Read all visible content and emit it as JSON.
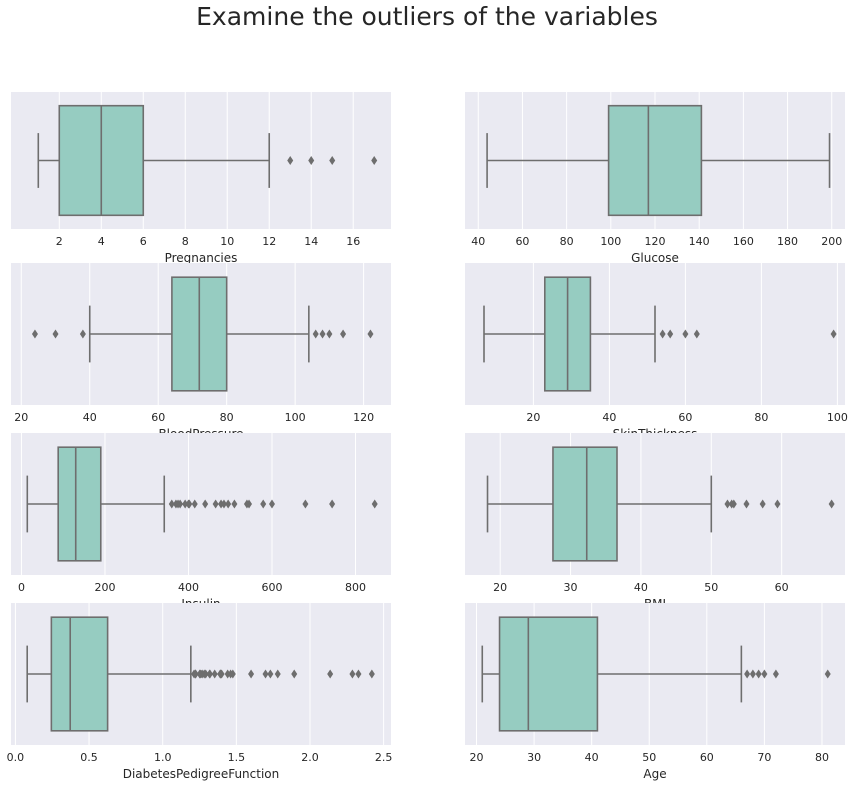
{
  "title": "Examine the outliers of the variables",
  "colors": {
    "panel_bg": "#EAEAF2",
    "grid": "#ffffff",
    "box_fill": "#96CCC1",
    "line": "#6E6E6E",
    "text": "#262626"
  },
  "chart_data": [
    {
      "type": "box",
      "xlabel": "Pregnancies",
      "xlim": [
        -0.3,
        17.8
      ],
      "ticks": [
        2,
        4,
        6,
        8,
        10,
        12,
        14,
        16
      ],
      "whisker_low": 1,
      "q1": 2,
      "median": 4,
      "q3": 6,
      "whisker_high": 12,
      "outliers": [
        13,
        14,
        15,
        17
      ]
    },
    {
      "type": "box",
      "xlabel": "Glucose",
      "xlim": [
        34,
        206
      ],
      "ticks": [
        40,
        60,
        80,
        100,
        120,
        140,
        160,
        180,
        200
      ],
      "whisker_low": 44,
      "q1": 99,
      "median": 117,
      "q3": 141,
      "whisker_high": 199,
      "outliers": []
    },
    {
      "type": "box",
      "xlabel": "BloodPressure",
      "xlim": [
        17,
        128
      ],
      "ticks": [
        20,
        40,
        60,
        80,
        100,
        120
      ],
      "whisker_low": 40,
      "q1": 64,
      "median": 72,
      "q3": 80,
      "whisker_high": 104,
      "outliers": [
        24,
        30,
        38,
        106,
        108,
        110,
        114,
        122
      ]
    },
    {
      "type": "box",
      "xlabel": "SkinThickness",
      "xlim": [
        2,
        102
      ],
      "ticks": [
        20,
        40,
        60,
        80,
        100
      ],
      "whisker_low": 7,
      "q1": 23,
      "median": 29,
      "q3": 35,
      "whisker_high": 52,
      "outliers": [
        54,
        56,
        60,
        63,
        99
      ]
    },
    {
      "type": "box",
      "xlabel": "Insulin",
      "xlim": [
        -25,
        885
      ],
      "ticks": [
        0,
        200,
        400,
        600,
        800
      ],
      "whisker_low": 14,
      "q1": 88,
      "median": 130,
      "q3": 190,
      "whisker_high": 342,
      "outliers": [
        360,
        370,
        375,
        380,
        392,
        400,
        402,
        415,
        440,
        465,
        478,
        485,
        495,
        510,
        540,
        545,
        579,
        600,
        680,
        744,
        846
      ]
    },
    {
      "type": "box",
      "xlabel": "BMI",
      "xlim": [
        15,
        69
      ],
      "ticks": [
        20,
        30,
        40,
        50,
        60
      ],
      "whisker_low": 18.2,
      "q1": 27.5,
      "median": 32.3,
      "q3": 36.6,
      "whisker_high": 50,
      "outliers": [
        52.3,
        52.9,
        53.2,
        55,
        57.3,
        59.4,
        67.1
      ]
    },
    {
      "type": "box",
      "xlabel": "DiabetesPedigreeFunction",
      "xlim": [
        -0.03,
        2.55
      ],
      "ticks": [
        "0.0",
        "0.5",
        "1.0",
        "1.5",
        "2.0",
        "2.5"
      ],
      "whisker_low": 0.08,
      "q1": 0.244,
      "median": 0.372,
      "q3": 0.626,
      "whisker_high": 1.191,
      "outliers": [
        1.213,
        1.222,
        1.224,
        1.251,
        1.258,
        1.268,
        1.282,
        1.292,
        1.318,
        1.321,
        1.353,
        1.39,
        1.394,
        1.4,
        1.441,
        1.461,
        1.476,
        1.6,
        1.698,
        1.731,
        1.781,
        1.893,
        2.137,
        2.288,
        2.329,
        2.42
      ]
    },
    {
      "type": "box",
      "xlabel": "Age",
      "xlim": [
        18,
        84
      ],
      "ticks": [
        20,
        30,
        40,
        50,
        60,
        70,
        80
      ],
      "whisker_low": 21,
      "q1": 24,
      "median": 29,
      "q3": 41,
      "whisker_high": 66,
      "outliers": [
        67,
        68,
        69,
        70,
        72,
        81
      ]
    }
  ]
}
